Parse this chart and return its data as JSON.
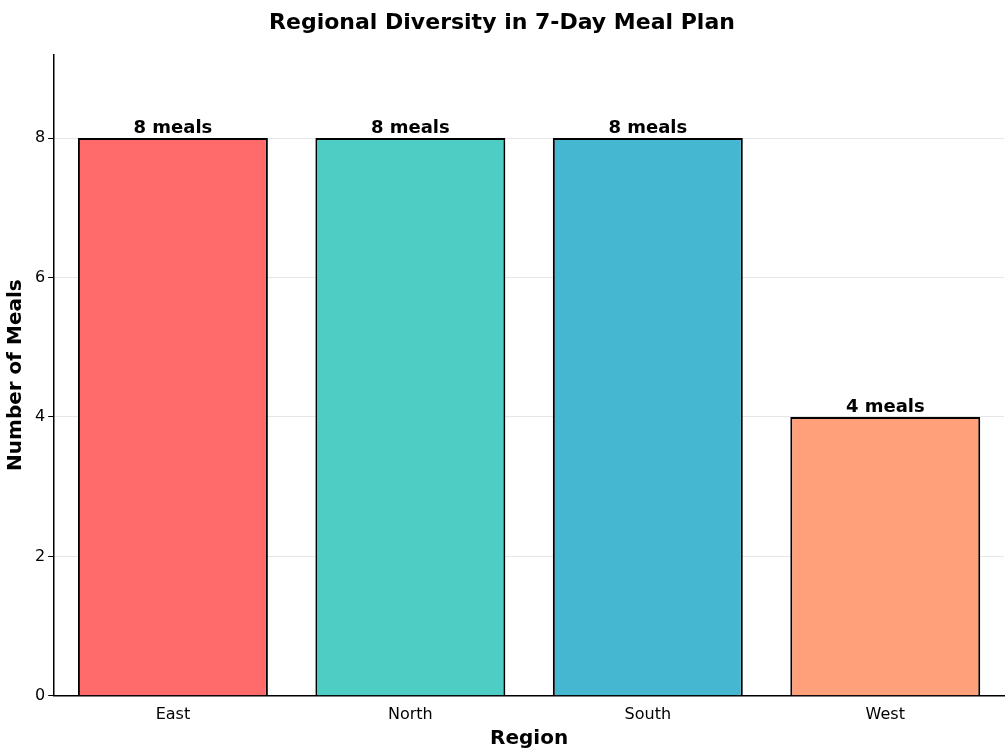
{
  "chart_data": {
    "type": "bar",
    "title": "Regional Diversity in 7-Day Meal Plan",
    "xlabel": "Region",
    "ylabel": "Number of Meals",
    "categories": [
      "East",
      "North",
      "South",
      "West"
    ],
    "values": [
      8,
      8,
      8,
      4
    ],
    "colors": [
      "#ff6b6b",
      "#4ecdc4",
      "#45b7d1",
      "#ffa07a"
    ],
    "value_labels": [
      "8 meals",
      "8 meals",
      "8 meals",
      "4 meals"
    ],
    "ylim": [
      0,
      9.2
    ],
    "yticks": [
      0,
      2,
      4,
      6,
      8
    ],
    "grid": "y",
    "legend": false
  }
}
